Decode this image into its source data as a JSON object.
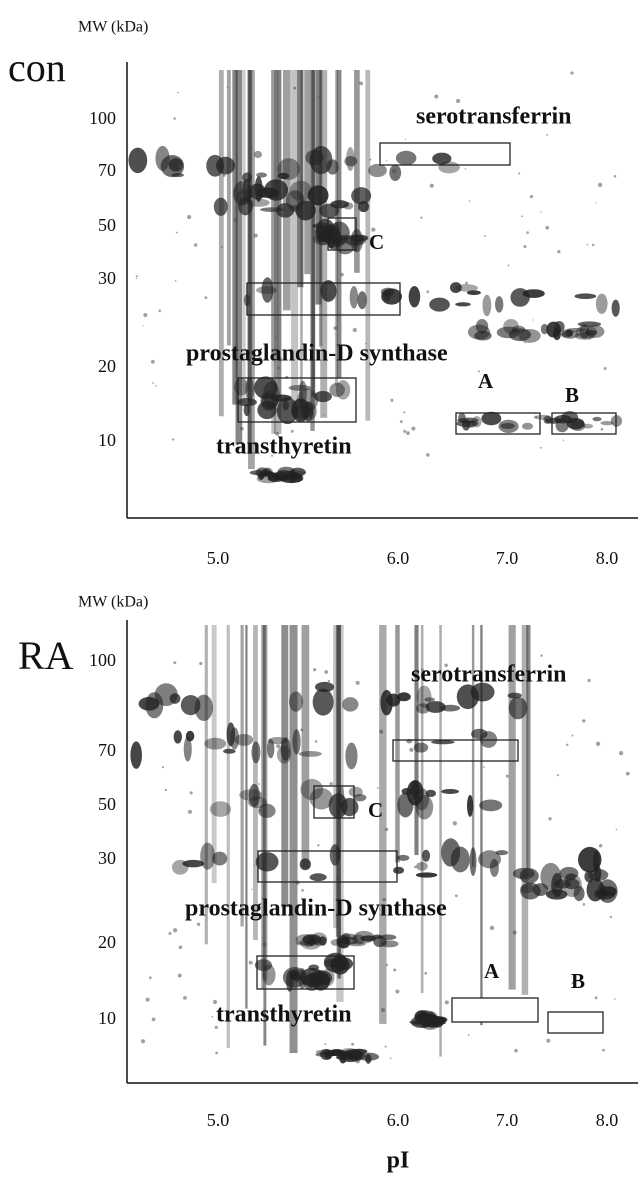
{
  "figure": {
    "x_axis_label": "pI",
    "panels": [
      {
        "label": "con",
        "y_axis_label": "MW (kDa)",
        "yticks": [
          "100",
          "70",
          "50",
          "30",
          "20",
          "10"
        ],
        "xticks": [
          "5.0",
          "6.0",
          "7.0",
          "8.0"
        ],
        "annotations": {
          "serotransferrin": "serotransferrin",
          "c": "C",
          "pgds": "prostaglandin-D synthase",
          "a": "A",
          "b": "B",
          "ttr": "transthyretin"
        }
      },
      {
        "label": "RA",
        "y_axis_label": "MW (kDa)",
        "yticks": [
          "100",
          "70",
          "50",
          "30",
          "20",
          "10"
        ],
        "xticks": [
          "5.0",
          "6.0",
          "7.0",
          "8.0"
        ],
        "annotations": {
          "serotransferrin": "serotransferrin",
          "c": "C",
          "pgds": "prostaglandin-D synthase",
          "a": "A",
          "b": "B",
          "ttr": "transthyretin"
        }
      }
    ]
  }
}
